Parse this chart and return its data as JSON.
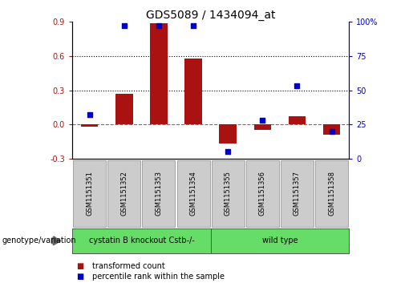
{
  "title": "GDS5089 / 1434094_at",
  "samples": [
    "GSM1151351",
    "GSM1151352",
    "GSM1151353",
    "GSM1151354",
    "GSM1151355",
    "GSM1151356",
    "GSM1151357",
    "GSM1151358"
  ],
  "bar_values": [
    -0.02,
    0.27,
    0.89,
    0.58,
    -0.17,
    -0.05,
    0.07,
    -0.09
  ],
  "dot_values": [
    32,
    97,
    97,
    97,
    5,
    28,
    53,
    20
  ],
  "bar_color": "#AA1111",
  "dot_color": "#0000CC",
  "ylim_left": [
    -0.3,
    0.9
  ],
  "ylim_right": [
    0,
    100
  ],
  "yticks_left": [
    -0.3,
    0.0,
    0.3,
    0.6,
    0.9
  ],
  "yticks_right": [
    0,
    25,
    50,
    75,
    100
  ],
  "hlines": [
    0.3,
    0.6
  ],
  "groups": [
    {
      "label": "cystatin B knockout Cstb-/-",
      "start": 0,
      "end": 3,
      "color": "#66DD66"
    },
    {
      "label": "wild type",
      "start": 4,
      "end": 7,
      "color": "#66DD66"
    }
  ],
  "genotype_label": "genotype/variation",
  "legend_bar_label": "transformed count",
  "legend_dot_label": "percentile rank within the sample",
  "title_fontsize": 10,
  "tick_fontsize": 7,
  "sample_fontsize": 6,
  "group_fontsize": 7,
  "legend_fontsize": 7,
  "genotype_fontsize": 7,
  "sample_box_color": "#CCCCCC",
  "background_color": "#FFFFFF"
}
